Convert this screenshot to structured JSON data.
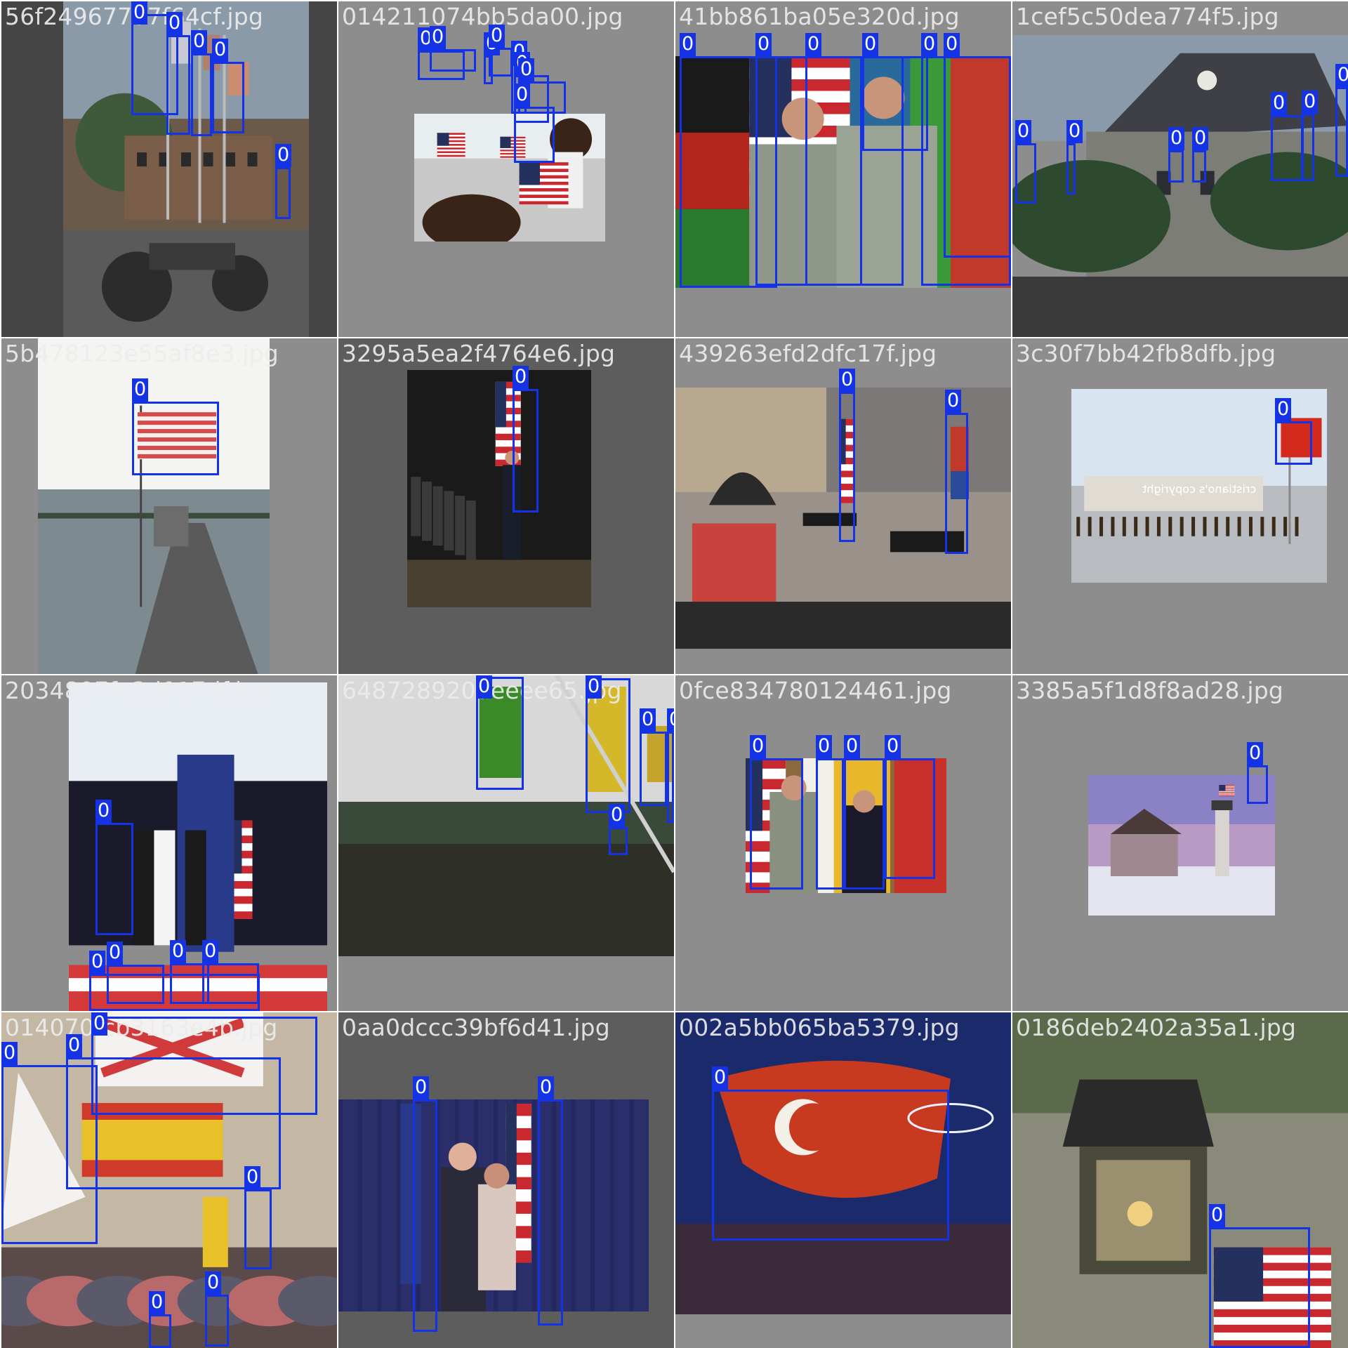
{
  "grid": {
    "class_label": "0",
    "box_color": "#1432e6",
    "tiles": [
      {
        "id": 0,
        "filename": "56f249677d7f64cf.jpg",
        "scene": "motorcycles-street"
      },
      {
        "id": 1,
        "filename": "014211074bb5da00.jpg",
        "scene": "hand-waving-flags"
      },
      {
        "id": 2,
        "filename": "41bb861ba05e320d.jpg",
        "scene": "generals-handshake"
      },
      {
        "id": 3,
        "filename": "1cef5c50dea774f5.jpg",
        "scene": "town-hall"
      },
      {
        "id": 4,
        "filename": "5b478123e55af8e3.jpg",
        "scene": "submarine-deck"
      },
      {
        "id": 5,
        "filename": "3295a5ea2f4764e6.jpg",
        "scene": "color-guard"
      },
      {
        "id": 6,
        "filename": "439263efd2dfc17f.jpg",
        "scene": "courtyard-ceremony"
      },
      {
        "id": 7,
        "filename": "3c30f7bb42fb8dfb.jpg",
        "scene": "tiananmen-square",
        "watermark": "cristiano's copyright"
      },
      {
        "id": 8,
        "filename": "2034807fe3d017df.jpg",
        "scene": "graduation-stage"
      },
      {
        "id": 9,
        "filename": "648728920deeee65.jpg",
        "scene": "canal-flags"
      },
      {
        "id": 10,
        "filename": "0fce834780124461.jpg",
        "scene": "officers-photo"
      },
      {
        "id": 11,
        "filename": "3385a5f1d8f8ad28.jpg",
        "scene": "lighthouse-winter"
      },
      {
        "id": 12,
        "filename": "014070fcb3163e4b.jpg",
        "scene": "street-protest"
      },
      {
        "id": 13,
        "filename": "0aa0dccc39bf6d41.jpg",
        "scene": "portrait-flags"
      },
      {
        "id": 14,
        "filename": "002a5bb065ba5379.jpg",
        "scene": "turkish-flag-night"
      },
      {
        "id": 15,
        "filename": "0186deb2402a35a1.jpg",
        "scene": "street-lantern"
      }
    ]
  }
}
